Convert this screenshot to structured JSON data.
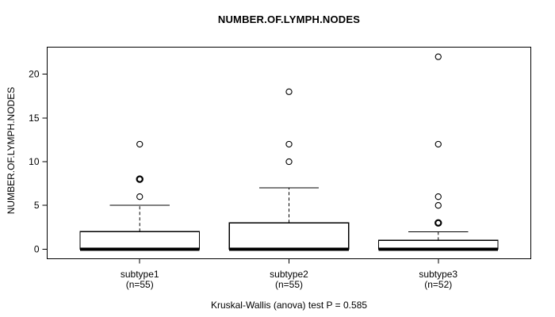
{
  "title": "NUMBER.OF.LYMPH.NODES",
  "ylabel": "NUMBER.OF.LYMPH.NODES",
  "caption": "Kruskal-Wallis (anova) test P = 0.585",
  "chart_data": {
    "type": "boxplot",
    "title": "NUMBER.OF.LYMPH.NODES",
    "xlabel": "",
    "ylabel": "NUMBER.OF.LYMPH.NODES",
    "caption": "Kruskal-Wallis (anova) test P = 0.585",
    "yticks": [
      0,
      5,
      10,
      15,
      20
    ],
    "ylim": [
      -1.1,
      23.1
    ],
    "grid": false,
    "legend": "none",
    "groups": [
      {
        "label": "subtype1",
        "sublabel": "(n=55)",
        "n": 55,
        "q1": 0,
        "median": 0,
        "q3": 2,
        "whisker_low": 0,
        "whisker_high": 5,
        "outliers": [
          6,
          8,
          12
        ],
        "bold_outliers": [
          8
        ]
      },
      {
        "label": "subtype2",
        "sublabel": "(n=55)",
        "n": 55,
        "q1": 0,
        "median": 0,
        "q3": 3,
        "whisker_low": 0,
        "whisker_high": 7,
        "outliers": [
          10,
          12,
          18
        ],
        "bold_outliers": []
      },
      {
        "label": "subtype3",
        "sublabel": "(n=52)",
        "n": 52,
        "q1": 0,
        "median": 0,
        "q3": 1,
        "whisker_low": 0,
        "whisker_high": 2,
        "outliers": [
          3,
          5,
          6,
          12,
          22
        ],
        "bold_outliers": [
          3
        ]
      }
    ],
    "colors": {
      "stroke": "#000000",
      "box_fill": "#ffffff",
      "background": "#ffffff"
    }
  }
}
